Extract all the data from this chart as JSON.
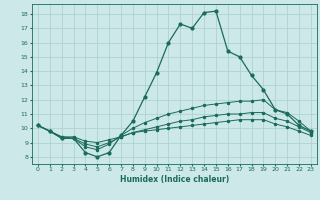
{
  "xlabel": "Humidex (Indice chaleur)",
  "background_color": "#cce8e8",
  "grid_color": "#aacece",
  "line_color": "#1a6b5a",
  "xlim": [
    -0.5,
    23.5
  ],
  "ylim": [
    7.5,
    18.7
  ],
  "xticks": [
    0,
    1,
    2,
    3,
    4,
    5,
    6,
    7,
    8,
    9,
    10,
    11,
    12,
    13,
    14,
    15,
    16,
    17,
    18,
    19,
    20,
    21,
    22,
    23
  ],
  "yticks": [
    8,
    9,
    10,
    11,
    12,
    13,
    14,
    15,
    16,
    17,
    18
  ],
  "line1_x": [
    0,
    1,
    2,
    3,
    4,
    5,
    6,
    7,
    8,
    9,
    10,
    11,
    12,
    13,
    14,
    15,
    16,
    17,
    18,
    19,
    20,
    21,
    22,
    23
  ],
  "line1_y": [
    10.2,
    9.8,
    9.3,
    9.3,
    8.3,
    8.0,
    8.3,
    9.5,
    10.5,
    12.2,
    13.9,
    16.0,
    17.3,
    17.0,
    18.1,
    18.2,
    15.4,
    15.0,
    13.7,
    12.7,
    11.3,
    11.0,
    10.2,
    9.8
  ],
  "line2_x": [
    0,
    1,
    2,
    3,
    4,
    5,
    6,
    7,
    8,
    9,
    10,
    11,
    12,
    13,
    14,
    15,
    16,
    17,
    18,
    19,
    20,
    21,
    22,
    23
  ],
  "line2_y": [
    10.2,
    9.8,
    9.3,
    9.3,
    8.7,
    8.5,
    8.9,
    9.5,
    10.0,
    10.4,
    10.7,
    11.0,
    11.2,
    11.4,
    11.6,
    11.7,
    11.8,
    11.9,
    11.9,
    12.0,
    11.3,
    11.1,
    10.5,
    9.8
  ],
  "line3_x": [
    0,
    1,
    2,
    3,
    4,
    5,
    6,
    7,
    8,
    9,
    10,
    11,
    12,
    13,
    14,
    15,
    16,
    17,
    18,
    19,
    20,
    21,
    22,
    23
  ],
  "line3_y": [
    10.2,
    9.8,
    9.4,
    9.3,
    8.9,
    8.7,
    9.0,
    9.4,
    9.7,
    9.9,
    10.1,
    10.3,
    10.5,
    10.6,
    10.8,
    10.9,
    11.0,
    11.0,
    11.1,
    11.1,
    10.7,
    10.5,
    10.1,
    9.7
  ],
  "line4_x": [
    0,
    1,
    2,
    3,
    4,
    5,
    6,
    7,
    8,
    9,
    10,
    11,
    12,
    13,
    14,
    15,
    16,
    17,
    18,
    19,
    20,
    21,
    22,
    23
  ],
  "line4_y": [
    10.2,
    9.8,
    9.4,
    9.4,
    9.1,
    9.0,
    9.2,
    9.4,
    9.7,
    9.8,
    9.9,
    10.0,
    10.1,
    10.2,
    10.3,
    10.4,
    10.5,
    10.6,
    10.6,
    10.6,
    10.3,
    10.1,
    9.8,
    9.5
  ]
}
